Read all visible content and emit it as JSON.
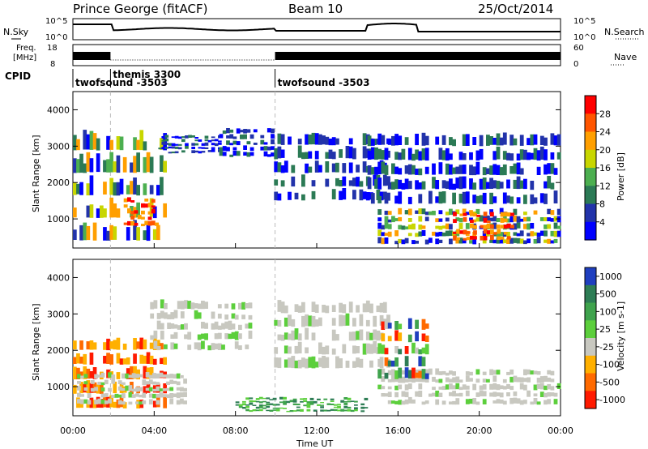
{
  "header": {
    "station": "Prince George (fitACF)",
    "beam": "Beam 10",
    "date": "25/Oct/2014"
  },
  "status_strip": {
    "nsky_label": "N.Sky",
    "nsearch_label": "N.Search",
    "freq_label_1": "Freq.",
    "freq_label_2": "[MHz]",
    "nave_label": "Nave",
    "noise_ticks_left": [
      "10^5",
      "10^0"
    ],
    "noise_ticks_right": [
      "10^5",
      "10^0"
    ],
    "freq_ticks_left": [
      "18",
      "8"
    ],
    "nave_ticks_right": [
      "60",
      "0"
    ],
    "cpid_label": "CPID",
    "cpid_segments": [
      {
        "name": "twofsound -3503",
        "start": 0.0,
        "end": 1.85
      },
      {
        "name": "themis 3300",
        "start": 1.85,
        "end": 9.95
      },
      {
        "name": "twofsound -3503",
        "start": 9.95,
        "end": 24.0
      }
    ]
  },
  "chart_data": [
    {
      "type": "heatmap",
      "title": "Power",
      "ylabel": "Slant Range [km]",
      "xlabel": "",
      "xlim_hours": [
        0,
        24
      ],
      "ylim": [
        200,
        4500
      ],
      "yticks": [
        1000,
        2000,
        3000,
        4000
      ],
      "colorbar_label": "Power [dB]",
      "colorbar_ticks": [
        "4",
        "8",
        "12",
        "16",
        "20",
        "24",
        "28"
      ],
      "colorbar_colors": [
        "#0000ff",
        "#2233aa",
        "#2b7a55",
        "#4caf50",
        "#c8d600",
        "#ff9f00",
        "#ff5500",
        "#ff0000"
      ],
      "mode_change_hours": [
        1.85,
        9.95
      ],
      "echo_regions": [
        {
          "t_start": 0.0,
          "t_end": 4.6,
          "r_min": 400,
          "r_max": 3500,
          "level": "mixed"
        },
        {
          "t_start": 2.5,
          "t_end": 4.2,
          "r_min": 800,
          "r_max": 1600,
          "level": "high"
        },
        {
          "t_start": 4.2,
          "t_end": 7.3,
          "r_min": 2800,
          "r_max": 3300,
          "level": "low"
        },
        {
          "t_start": 7.2,
          "t_end": 9.9,
          "r_min": 2700,
          "r_max": 3500,
          "level": "low"
        },
        {
          "t_start": 9.9,
          "t_end": 15.6,
          "r_min": 1500,
          "r_max": 3400,
          "level": "low"
        },
        {
          "t_start": 15.0,
          "t_end": 24.0,
          "r_min": 300,
          "r_max": 1300,
          "level": "mixed"
        },
        {
          "t_start": 18.7,
          "t_end": 21.7,
          "r_min": 400,
          "r_max": 1200,
          "level": "high"
        },
        {
          "t_start": 14.5,
          "t_end": 24.0,
          "r_min": 1400,
          "r_max": 3400,
          "level": "low"
        }
      ]
    },
    {
      "type": "heatmap",
      "title": "Velocity",
      "ylabel": "Slant Range [km]",
      "xlabel": "Time UT",
      "xlim_hours": [
        0,
        24
      ],
      "ylim": [
        200,
        4500
      ],
      "yticks": [
        1000,
        2000,
        3000,
        4000
      ],
      "xticks": [
        "00:00",
        "04:00",
        "08:00",
        "12:00",
        "16:00",
        "20:00",
        "00:00"
      ],
      "colorbar_label": "Velocity [m s-1]",
      "colorbar_ticks": [
        "1000",
        "500",
        "100",
        "25",
        "-25",
        "-100",
        "-500",
        "-1000"
      ],
      "colorbar_colors": [
        "#1f3fbf",
        "#2e7d55",
        "#3fa34d",
        "#5ccf3c",
        "#c8c8c0",
        "#ffb000",
        "#ff6a00",
        "#ff1a00"
      ],
      "mode_change_hours": [
        1.85,
        9.95
      ],
      "echo_regions": [
        {
          "t_start": 0.0,
          "t_end": 4.6,
          "r_min": 400,
          "r_max": 2400,
          "level": "negative"
        },
        {
          "t_start": 0.2,
          "t_end": 5.6,
          "r_min": 500,
          "r_max": 1400,
          "level": "ground"
        },
        {
          "t_start": 3.8,
          "t_end": 8.8,
          "r_min": 2000,
          "r_max": 3400,
          "level": "ground"
        },
        {
          "t_start": 9.9,
          "t_end": 15.6,
          "r_min": 1500,
          "r_max": 3400,
          "level": "ground"
        },
        {
          "t_start": 8.0,
          "t_end": 14.5,
          "r_min": 300,
          "r_max": 700,
          "level": "positive"
        },
        {
          "t_start": 15.0,
          "t_end": 24.0,
          "r_min": 500,
          "r_max": 1500,
          "level": "ground"
        },
        {
          "t_start": 15.0,
          "t_end": 17.5,
          "r_min": 1200,
          "r_max": 2900,
          "level": "mixed"
        }
      ]
    }
  ]
}
